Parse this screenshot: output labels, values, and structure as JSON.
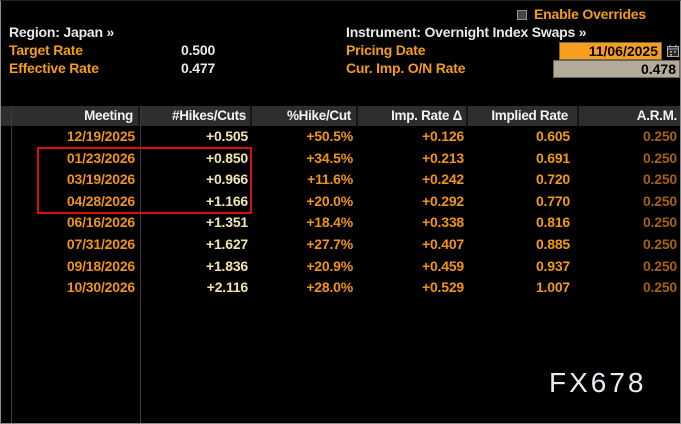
{
  "overrides": {
    "label": "Enable Overrides",
    "checked": false
  },
  "top_left": {
    "region": "Region: Japan »",
    "target_rate_label": "Target Rate",
    "target_rate_value": "0.500",
    "effective_rate_label": "Effective Rate",
    "effective_rate_value": "0.477"
  },
  "top_right": {
    "instrument": "Instrument: Overnight Index Swaps »",
    "pricing_date_label": "Pricing Date",
    "pricing_date_value": "11/06/2025",
    "cur_imp_on_rate_label": "Cur. Imp. O/N Rate",
    "cur_imp_on_rate_value": "0.478"
  },
  "table": {
    "headers": [
      "Meeting",
      "#Hikes/Cuts",
      "%Hike/Cut",
      "Imp. Rate Δ",
      "Implied Rate",
      "A.R.M."
    ],
    "rows": [
      [
        "12/19/2025",
        "+0.505",
        "+50.5%",
        "+0.126",
        "0.605",
        "0.250"
      ],
      [
        "01/23/2026",
        "+0.850",
        "+34.5%",
        "+0.213",
        "0.691",
        "0.250"
      ],
      [
        "03/19/2026",
        "+0.966",
        "+11.6%",
        "+0.242",
        "0.720",
        "0.250"
      ],
      [
        "04/28/2026",
        "+1.166",
        "+20.0%",
        "+0.292",
        "0.770",
        "0.250"
      ],
      [
        "06/16/2026",
        "+1.351",
        "+18.4%",
        "+0.338",
        "0.816",
        "0.250"
      ],
      [
        "07/31/2026",
        "+1.627",
        "+27.7%",
        "+0.407",
        "0.885",
        "0.250"
      ],
      [
        "09/18/2026",
        "+1.836",
        "+20.9%",
        "+0.459",
        "0.937",
        "0.250"
      ],
      [
        "10/30/2026",
        "+2.116",
        "+28.0%",
        "+0.529",
        "1.007",
        "0.250"
      ]
    ],
    "highlighted_meetings": [
      "01/23/2026",
      "03/19/2026",
      "04/28/2026"
    ]
  },
  "watermark": "FX678",
  "colors": {
    "background": "#000000",
    "amber_label": "#f29c18",
    "amber_value": "#ef9414",
    "cream_value": "#f2e3ad",
    "dim_arm_value": "#a5610d",
    "white_text": "#e9e9e9",
    "header_bg": "#2e2e2e",
    "pricing_field_bg": "#f79e1f",
    "cur_imp_field_bg": "#b3aa9a",
    "highlight_red": "#d90f0f"
  }
}
